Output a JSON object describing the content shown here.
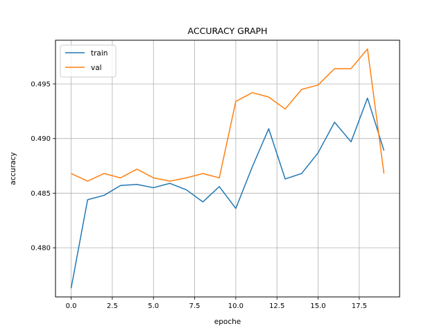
{
  "chart_data": {
    "type": "line",
    "title": "ACCURACY GRAPH",
    "xlabel": "epoche",
    "ylabel": "accuracy",
    "xlim": [
      -0.95,
      19.95
    ],
    "ylim": [
      0.4755,
      0.499
    ],
    "xticks": [
      0.0,
      2.5,
      5.0,
      7.5,
      10.0,
      12.5,
      15.0,
      17.5
    ],
    "xtick_labels": [
      "0.0",
      "2.5",
      "5.0",
      "7.5",
      "10.0",
      "12.5",
      "15.0",
      "17.5"
    ],
    "yticks": [
      0.48,
      0.485,
      0.49,
      0.495
    ],
    "ytick_labels": [
      "0.480",
      "0.485",
      "0.490",
      "0.495"
    ],
    "grid": true,
    "legend_position": "top-left",
    "x": [
      0,
      1,
      2,
      3,
      4,
      5,
      6,
      7,
      8,
      9,
      10,
      11,
      12,
      13,
      14,
      15,
      16,
      17,
      18,
      19
    ],
    "series": [
      {
        "name": "train",
        "color": "#1f77b4",
        "values": [
          0.4763,
          0.4844,
          0.4848,
          0.4857,
          0.4858,
          0.4855,
          0.4859,
          0.4853,
          0.4842,
          0.4856,
          0.4836,
          0.4874,
          0.4909,
          0.4863,
          0.4868,
          0.4887,
          0.4915,
          0.4897,
          0.4937,
          0.4889
        ]
      },
      {
        "name": "val",
        "color": "#ff7f0e",
        "values": [
          0.4868,
          0.4861,
          0.4868,
          0.4864,
          0.4872,
          0.4864,
          0.4861,
          0.4864,
          0.4868,
          0.4864,
          0.4934,
          0.4942,
          0.4938,
          0.4927,
          0.4945,
          0.4949,
          0.4964,
          0.4964,
          0.4982,
          0.4868
        ]
      }
    ]
  }
}
